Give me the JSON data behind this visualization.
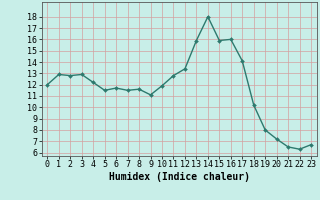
{
  "x": [
    0,
    1,
    2,
    3,
    4,
    5,
    6,
    7,
    8,
    9,
    10,
    11,
    12,
    13,
    14,
    15,
    16,
    17,
    18,
    19,
    20,
    21,
    22,
    23
  ],
  "y": [
    12.0,
    12.9,
    12.8,
    12.9,
    12.2,
    11.5,
    11.7,
    11.5,
    11.6,
    11.1,
    11.9,
    12.8,
    13.4,
    15.9,
    18.0,
    15.9,
    16.0,
    14.1,
    10.2,
    8.0,
    7.2,
    6.5,
    6.3,
    6.7
  ],
  "line_color": "#2d7a6e",
  "marker": "D",
  "marker_size": 2,
  "bg_color": "#c8eee8",
  "grid_color": "#d4a0a0",
  "xlabel": "Humidex (Indice chaleur)",
  "ylim_min": 6,
  "ylim_max": 19,
  "xlim_min": -0.5,
  "xlim_max": 23.5,
  "yticks": [
    6,
    7,
    8,
    9,
    10,
    11,
    12,
    13,
    14,
    15,
    16,
    17,
    18
  ],
  "xticks": [
    0,
    1,
    2,
    3,
    4,
    5,
    6,
    7,
    8,
    9,
    10,
    11,
    12,
    13,
    14,
    15,
    16,
    17,
    18,
    19,
    20,
    21,
    22,
    23
  ],
  "xlabel_fontsize": 7,
  "tick_fontsize": 6,
  "line_width": 1.0
}
